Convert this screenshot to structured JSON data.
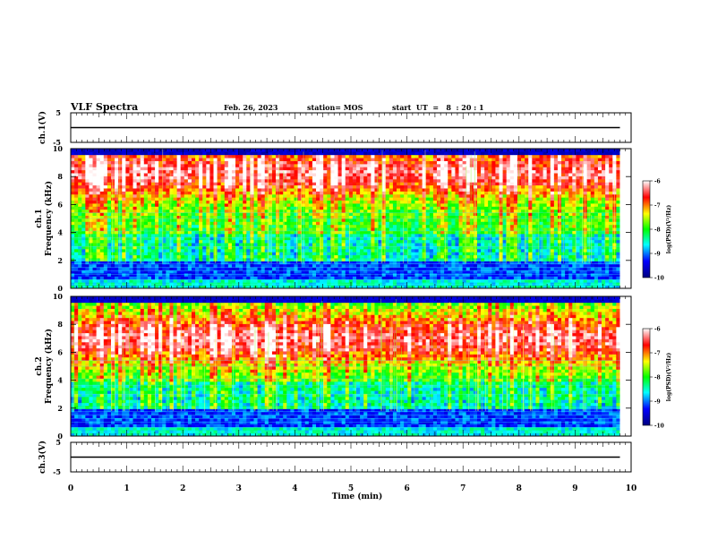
{
  "header": {
    "title": "VLF Spectra",
    "date": "Feb. 26, 2023",
    "station": "station= MOS",
    "start_ut": "start  UT  =   8  : 20 : 1"
  },
  "colors": {
    "background": "#ffffff",
    "axes": "#000000",
    "colormap": [
      "#00007f",
      "#0000ff",
      "#00ffff",
      "#00ff00",
      "#ffff00",
      "#ff0000",
      "#ffffff"
    ]
  },
  "chart_data": [
    {
      "type": "line",
      "name": "ch1-voltage",
      "ylabel": "ch.1(V)",
      "ylim": [
        -5,
        5
      ],
      "yticks": [
        "5",
        "-5"
      ],
      "xlim": [
        0,
        10
      ],
      "x": [
        0,
        10
      ],
      "values": [
        0,
        0
      ]
    },
    {
      "type": "heatmap",
      "name": "ch1-spectrogram",
      "ylabel": "ch.1\nFrequency (kHz)",
      "xlim": [
        0,
        10
      ],
      "ylim": [
        0,
        10
      ],
      "yticks": [
        "0",
        "2",
        "4",
        "6",
        "8",
        "10"
      ],
      "data_end_min": 9.8,
      "colorbar": {
        "label": "log(PSD)(V²/Hz)",
        "range": [
          -10,
          -6
        ],
        "ticks": [
          "-6",
          "-7",
          "-8",
          "-9",
          "-10"
        ]
      }
    },
    {
      "type": "heatmap",
      "name": "ch2-spectrogram",
      "ylabel": "ch.2\nFrequency (kHz)",
      "xlim": [
        0,
        10
      ],
      "ylim": [
        0,
        10
      ],
      "yticks": [
        "0",
        "2",
        "4",
        "6",
        "8",
        "10"
      ],
      "data_end_min": 9.8,
      "colorbar": {
        "label": "log(PSD)(V²/Hz)",
        "range": [
          -10,
          -6
        ],
        "ticks": [
          "-6",
          "-7",
          "-8",
          "-9",
          "-10"
        ]
      }
    },
    {
      "type": "line",
      "name": "ch3-voltage",
      "ylabel": "ch.3(V)",
      "ylim": [
        -5,
        5
      ],
      "yticks": [
        "5",
        "-5"
      ],
      "xlim": [
        0,
        10
      ],
      "x": [
        0,
        10
      ],
      "values": [
        0,
        0
      ]
    }
  ],
  "xaxis": {
    "label": "Time  (min)",
    "ticks": [
      "0",
      "1",
      "2",
      "3",
      "4",
      "5",
      "6",
      "7",
      "8",
      "9",
      "10"
    ]
  }
}
